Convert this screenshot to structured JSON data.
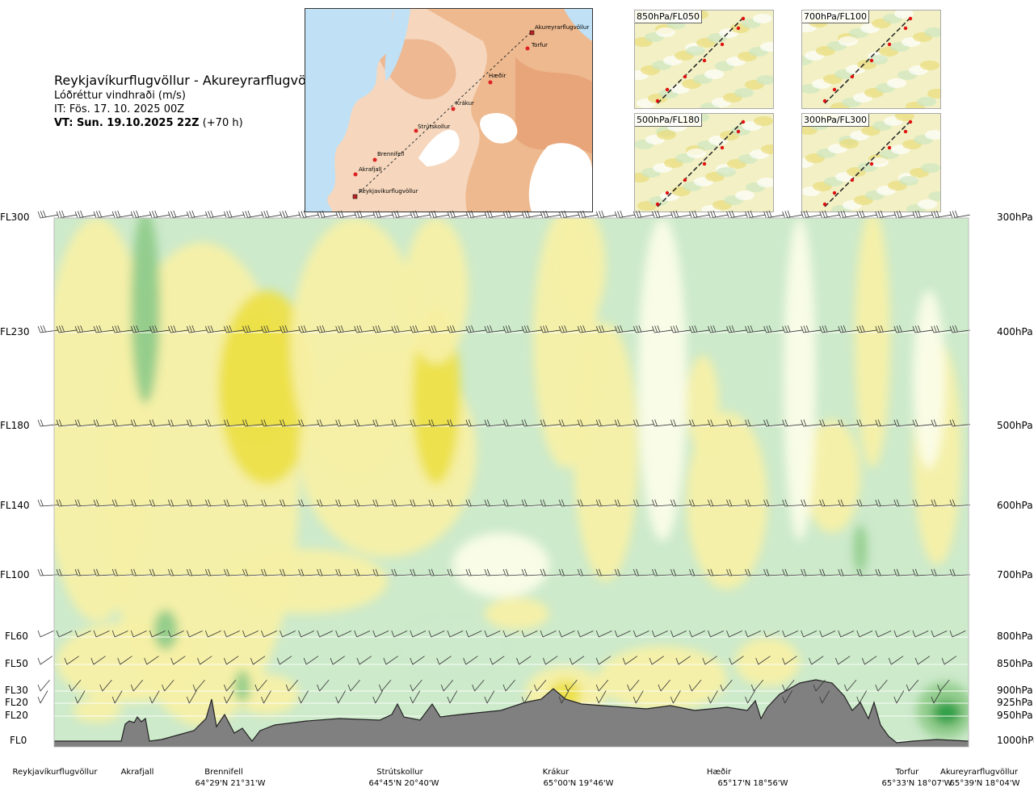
{
  "title": {
    "route": "Reykjavíkurflugvöllur - Akureyrarflugvöllur",
    "subtitle": "Lóðréttur vindhraði (m/s)",
    "issue_time": "IT: Fös. 17. 10. 2025 00Z",
    "valid_time_bold": "VT: Sun. 19.10.2025 22Z",
    "valid_time_offset": "(+70 h)"
  },
  "route_map": {
    "waypoints": [
      {
        "name": "Akureyrarflugvöllur",
        "type": "airport"
      },
      {
        "name": "Torfur",
        "type": "point"
      },
      {
        "name": "Hæðir",
        "type": "point"
      },
      {
        "name": "Krákur",
        "type": "point"
      },
      {
        "name": "Strútskollur",
        "type": "point"
      },
      {
        "name": "Brennifell",
        "type": "point"
      },
      {
        "name": "Akrafjall",
        "type": "point"
      },
      {
        "name": "Reykjavíkurflugvöllur",
        "type": "airport"
      }
    ]
  },
  "mini_maps": [
    {
      "label": "850hPa/FL050"
    },
    {
      "label": "700hPa/FL100"
    },
    {
      "label": "500hPa/FL180"
    },
    {
      "label": "300hPa/FL300"
    }
  ],
  "chart_data": {
    "type": "heatmap",
    "title": "Reykjavíkurflugvöllur - Akureyrarflugvöllur",
    "variable": "Lóðréttur vindhraði (m/s)",
    "left_axis_levels": [
      {
        "fl": "FL300",
        "hpa": 300
      },
      {
        "fl": "FL230",
        "hpa": 400
      },
      {
        "fl": "FL180",
        "hpa": 500
      },
      {
        "fl": "FL140",
        "hpa": 600
      },
      {
        "fl": "FL100",
        "hpa": 700
      },
      {
        "fl": "FL60",
        "hpa": 800
      },
      {
        "fl": "FL50",
        "hpa": 850
      },
      {
        "fl": "FL30",
        "hpa": 900
      },
      {
        "fl": "FL20",
        "hpa": 925
      },
      {
        "fl": "FL20",
        "hpa": 950
      },
      {
        "fl": "FL0",
        "hpa": 1000
      }
    ],
    "right_axis_labels": [
      "300hPa",
      "400hPa",
      "500hPa",
      "600hPa",
      "700hPa",
      "800hPa",
      "850hPa",
      "900hPa",
      "925hPa",
      "950hPa",
      "1000hPa"
    ],
    "route_points": [
      {
        "name": "Reykjavíkurflugvöllur",
        "coord": "",
        "dist": 0.0
      },
      {
        "name": "Akrafjall",
        "coord": "",
        "dist": 0.09
      },
      {
        "name": "Brennifell",
        "coord": "64°29'N 21°31'W",
        "dist": 0.185
      },
      {
        "name": "Strútskollur",
        "coord": "64°45'N 20°40'W",
        "dist": 0.38
      },
      {
        "name": "Krákur",
        "coord": "65°00'N 19°46'W",
        "dist": 0.57
      },
      {
        "name": "Hæðir",
        "coord": "65°17'N 18°56'W",
        "dist": 0.77
      },
      {
        "name": "Torfur",
        "coord": "65°33'N 18°07'W",
        "dist": 0.945
      },
      {
        "name": "Akureyrarflugvöllur",
        "coord": "65°39'N 18°04'W",
        "dist": 1.0
      }
    ],
    "field_palette": {
      "strong_up": "#2e9e46",
      "moderate_up": "#8fcb8a",
      "weak_up": "#cdeacb",
      "near_zero": "#fbfde8",
      "weak_down": "#f7f0a6",
      "moderate_down": "#ede04a",
      "terrain": "#808080"
    },
    "grid": true
  }
}
